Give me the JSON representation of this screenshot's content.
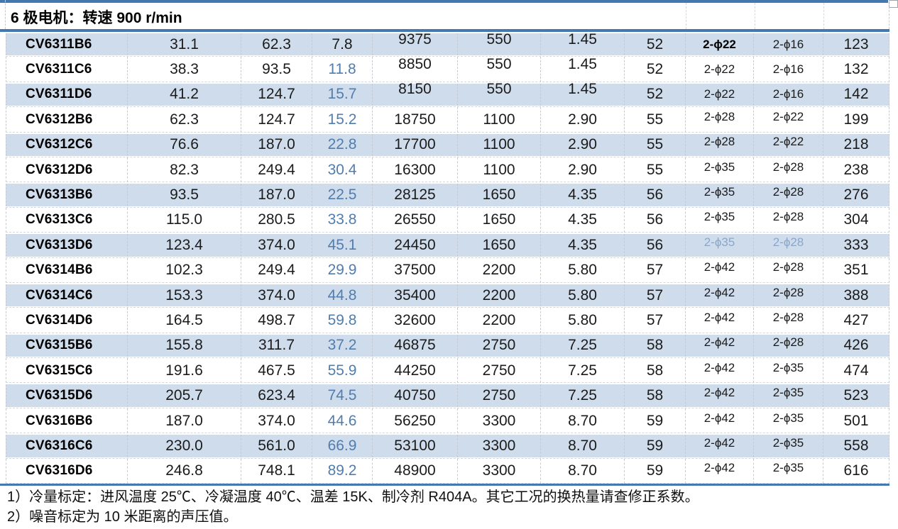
{
  "table": {
    "title": "6 极电机：转速 900 r/min",
    "rows": [
      {
        "model": "CV6311B6",
        "values": [
          "31.1",
          "62.3",
          "7.8",
          "9375",
          "550",
          "1.45",
          "52",
          "2-ϕ22",
          "2-ϕ16",
          "123"
        ]
      },
      {
        "model": "CV6311C6",
        "values": [
          "38.3",
          "93.5",
          "11.8",
          "8850",
          "550",
          "1.45",
          "52",
          "2-ϕ22",
          "2-ϕ16",
          "132"
        ]
      },
      {
        "model": "CV6311D6",
        "values": [
          "41.2",
          "124.7",
          "15.7",
          "8150",
          "550",
          "1.45",
          "52",
          "2-ϕ22",
          "2-ϕ16",
          "142"
        ]
      },
      {
        "model": "CV6312B6",
        "values": [
          "62.3",
          "124.7",
          "15.2",
          "18750",
          "1100",
          "2.90",
          "55",
          "2-ϕ28",
          "2-ϕ22",
          "199"
        ]
      },
      {
        "model": "CV6312C6",
        "values": [
          "76.6",
          "187.0",
          "22.8",
          "17700",
          "1100",
          "2.90",
          "55",
          "2-ϕ28",
          "2-ϕ22",
          "218"
        ]
      },
      {
        "model": "CV6312D6",
        "values": [
          "82.3",
          "249.4",
          "30.4",
          "16300",
          "1100",
          "2.90",
          "55",
          "2-ϕ35",
          "2-ϕ28",
          "238"
        ]
      },
      {
        "model": "CV6313B6",
        "values": [
          "93.5",
          "187.0",
          "22.5",
          "28125",
          "1650",
          "4.35",
          "56",
          "2-ϕ35",
          "2-ϕ28",
          "276"
        ]
      },
      {
        "model": "CV6313C6",
        "values": [
          "115.0",
          "280.5",
          "33.8",
          "26550",
          "1650",
          "4.35",
          "56",
          "2-ϕ35",
          "2-ϕ28",
          "304"
        ]
      },
      {
        "model": "CV6313D6",
        "values": [
          "123.4",
          "374.0",
          "45.1",
          "24450",
          "1650",
          "4.35",
          "56",
          "2-ϕ35",
          "2-ϕ28",
          "333"
        ]
      },
      {
        "model": "CV6314B6",
        "values": [
          "102.3",
          "249.4",
          "29.9",
          "37500",
          "2200",
          "5.80",
          "57",
          "2-ϕ42",
          "2-ϕ28",
          "351"
        ]
      },
      {
        "model": "CV6314C6",
        "values": [
          "153.3",
          "374.0",
          "44.8",
          "35400",
          "2200",
          "5.80",
          "57",
          "2-ϕ42",
          "2-ϕ28",
          "388"
        ]
      },
      {
        "model": "CV6314D6",
        "values": [
          "164.5",
          "498.7",
          "59.8",
          "32600",
          "2200",
          "5.80",
          "57",
          "2-ϕ42",
          "2-ϕ28",
          "427"
        ]
      },
      {
        "model": "CV6315B6",
        "values": [
          "155.8",
          "311.7",
          "37.2",
          "46875",
          "2750",
          "7.25",
          "58",
          "2-ϕ42",
          "2-ϕ28",
          "426"
        ]
      },
      {
        "model": "CV6315C6",
        "values": [
          "191.6",
          "467.5",
          "55.9",
          "44250",
          "2750",
          "7.25",
          "58",
          "2-ϕ42",
          "2-ϕ35",
          "474"
        ]
      },
      {
        "model": "CV6315D6",
        "values": [
          "205.7",
          "623.4",
          "74.5",
          "40750",
          "2750",
          "7.25",
          "58",
          "2-ϕ42",
          "2-ϕ35",
          "523"
        ]
      },
      {
        "model": "CV6316B6",
        "values": [
          "187.0",
          "374.0",
          "44.6",
          "56250",
          "3300",
          "8.70",
          "59",
          "2-ϕ42",
          "2-ϕ35",
          "501"
        ]
      },
      {
        "model": "CV6316C6",
        "values": [
          "230.0",
          "561.0",
          "66.9",
          "53100",
          "3300",
          "8.70",
          "59",
          "2-ϕ42",
          "2-ϕ35",
          "558"
        ]
      },
      {
        "model": "CV6316D6",
        "values": [
          "246.8",
          "748.1",
          "89.2",
          "48900",
          "3300",
          "8.70",
          "59",
          "2-ϕ42",
          "2-ϕ35",
          "616"
        ]
      }
    ]
  },
  "notes": [
    "1）冷量标定：进风温度 25℃、冷凝温度 40℃、温差 15K、制冷剂 R404A。其它工况的换热量请查修正系数。",
    "2）噪音标定为 10 米距离的声压值。"
  ],
  "formatting": {
    "striped_rows": "even-indices",
    "blue_value_col": 2,
    "blue_value_start_row": 1,
    "bold_cells": [
      [
        0,
        7
      ]
    ],
    "light_blue_cells": [
      [
        8,
        7
      ],
      [
        8,
        8
      ]
    ],
    "raised_rows": [
      0,
      1,
      2
    ],
    "raised_value_cols": [
      3,
      4,
      5
    ],
    "phi_value_cols": [
      7,
      8
    ],
    "phi_raise_start_row": 3
  },
  "colors": {
    "stripe_background": "#cfdcec",
    "rule_blue": "#4478af",
    "value_blue": "#517dae",
    "value_light_blue": "#8ca6c9",
    "text_black": "#1b1b1b"
  }
}
